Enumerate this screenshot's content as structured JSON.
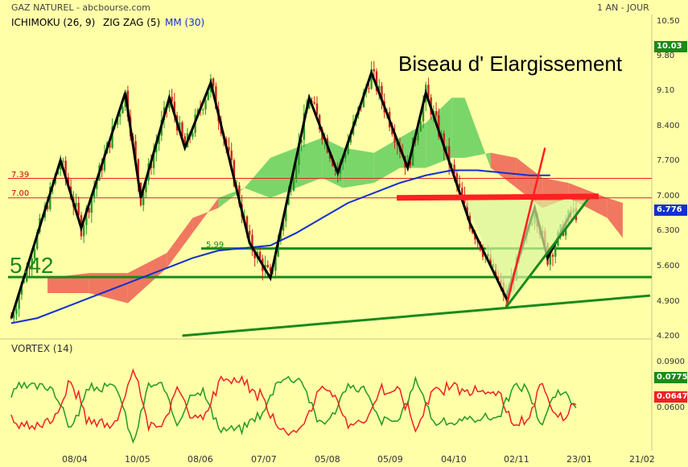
{
  "header": {
    "title": "GAZ NATUREL - abcbourse.com",
    "period": "1 AN - JOUR"
  },
  "indicators": {
    "ichimoku": "ICHIMOKU (26, 9)",
    "zigzag": "ZIG ZAG (5)",
    "mm": "MM (30)",
    "vortex": "VORTEX (14)"
  },
  "annotation": "Biseau d' Elargissement",
  "colors": {
    "background": "#ffffa8",
    "candle": "#2a9a2a",
    "candle_down": "#cc2222",
    "cloud_bull": "#7bd66a",
    "cloud_bear": "#f07860",
    "mm": "#1030d0",
    "zigzag": "#000000",
    "support": "#1a8a1a",
    "resistance_red": "#ff2020",
    "vortex_plus": "#229922",
    "vortex_minus": "#ee2222"
  },
  "chart_data": {
    "type": "candlestick",
    "y_ticks": [
      "10.50",
      "9.80",
      "9.10",
      "8.400",
      "7.700",
      "7.000",
      "6.300",
      "5.600",
      "4.900",
      "4.200"
    ],
    "x_ticks": [
      "08/04",
      "10/05",
      "08/06",
      "07/07",
      "05/08",
      "05/09",
      "04/10",
      "02/11",
      "23/01",
      "21/02"
    ],
    "last_price": "10.03",
    "current_price": "6.776",
    "levels": {
      "l739": "7.39",
      "l700": "7.00",
      "l599": "5.99",
      "l542": "5.42"
    },
    "vortex": {
      "y_ticks": [
        "0.0900",
        "0.0750",
        "0.0600"
      ],
      "plus_value": "0.0775",
      "minus_value": "0.0647"
    },
    "zigzag": [
      [
        0,
        4.6
      ],
      [
        19,
        7.75
      ],
      [
        27,
        6.4
      ],
      [
        44,
        9.1
      ],
      [
        50,
        7.0
      ],
      [
        61,
        9.0
      ],
      [
        67,
        8.0
      ],
      [
        77,
        9.3
      ],
      [
        92,
        6.1
      ],
      [
        100,
        5.4
      ],
      [
        115,
        9.0
      ],
      [
        126,
        7.5
      ],
      [
        139,
        9.5
      ],
      [
        153,
        7.6
      ],
      [
        160,
        9.1
      ],
      [
        177,
        6.5
      ],
      [
        191,
        5.0
      ],
      [
        202,
        6.8
      ],
      [
        207,
        5.8
      ],
      [
        216,
        6.7
      ]
    ],
    "mm30": [
      [
        0,
        4.5
      ],
      [
        10,
        4.6
      ],
      [
        20,
        4.8
      ],
      [
        30,
        5.0
      ],
      [
        40,
        5.2
      ],
      [
        50,
        5.4
      ],
      [
        60,
        5.6
      ],
      [
        70,
        5.8
      ],
      [
        80,
        5.95
      ],
      [
        90,
        6.0
      ],
      [
        100,
        6.05
      ],
      [
        110,
        6.3
      ],
      [
        120,
        6.6
      ],
      [
        130,
        6.9
      ],
      [
        140,
        7.1
      ],
      [
        150,
        7.3
      ],
      [
        160,
        7.45
      ],
      [
        170,
        7.55
      ],
      [
        180,
        7.55
      ],
      [
        190,
        7.5
      ],
      [
        200,
        7.45
      ],
      [
        208,
        7.45
      ]
    ],
    "kumo_span_a": [
      [
        14,
        5.1
      ],
      [
        30,
        5.1
      ],
      [
        45,
        4.9
      ],
      [
        60,
        5.6
      ],
      [
        70,
        6.3
      ],
      [
        80,
        7.0
      ],
      [
        90,
        7.2
      ],
      [
        100,
        7.8
      ],
      [
        110,
        8.0
      ],
      [
        120,
        8.2
      ],
      [
        128,
        8.0
      ],
      [
        140,
        7.9
      ],
      [
        150,
        8.2
      ],
      [
        160,
        8.5
      ],
      [
        170,
        9.0
      ],
      [
        175,
        9.0
      ],
      [
        185,
        7.6
      ],
      [
        195,
        7.2
      ],
      [
        205,
        6.8
      ],
      [
        215,
        7.0
      ],
      [
        230,
        6.6
      ],
      [
        236,
        6.2
      ]
    ],
    "kumo_span_b": [
      [
        14,
        5.4
      ],
      [
        30,
        5.5
      ],
      [
        45,
        5.5
      ],
      [
        60,
        5.9
      ],
      [
        70,
        6.6
      ],
      [
        80,
        6.8
      ],
      [
        90,
        7.2
      ],
      [
        100,
        7.0
      ],
      [
        110,
        7.2
      ],
      [
        120,
        7.4
      ],
      [
        128,
        7.2
      ],
      [
        140,
        7.3
      ],
      [
        150,
        7.6
      ],
      [
        160,
        7.6
      ],
      [
        170,
        7.8
      ],
      [
        175,
        7.8
      ],
      [
        185,
        7.9
      ],
      [
        195,
        7.8
      ],
      [
        205,
        7.4
      ],
      [
        215,
        7.3
      ],
      [
        230,
        7.0
      ],
      [
        236,
        6.9
      ]
    ],
    "ohlc_range": {
      "start": 4.6,
      "end": 6.776,
      "days": 218
    }
  }
}
